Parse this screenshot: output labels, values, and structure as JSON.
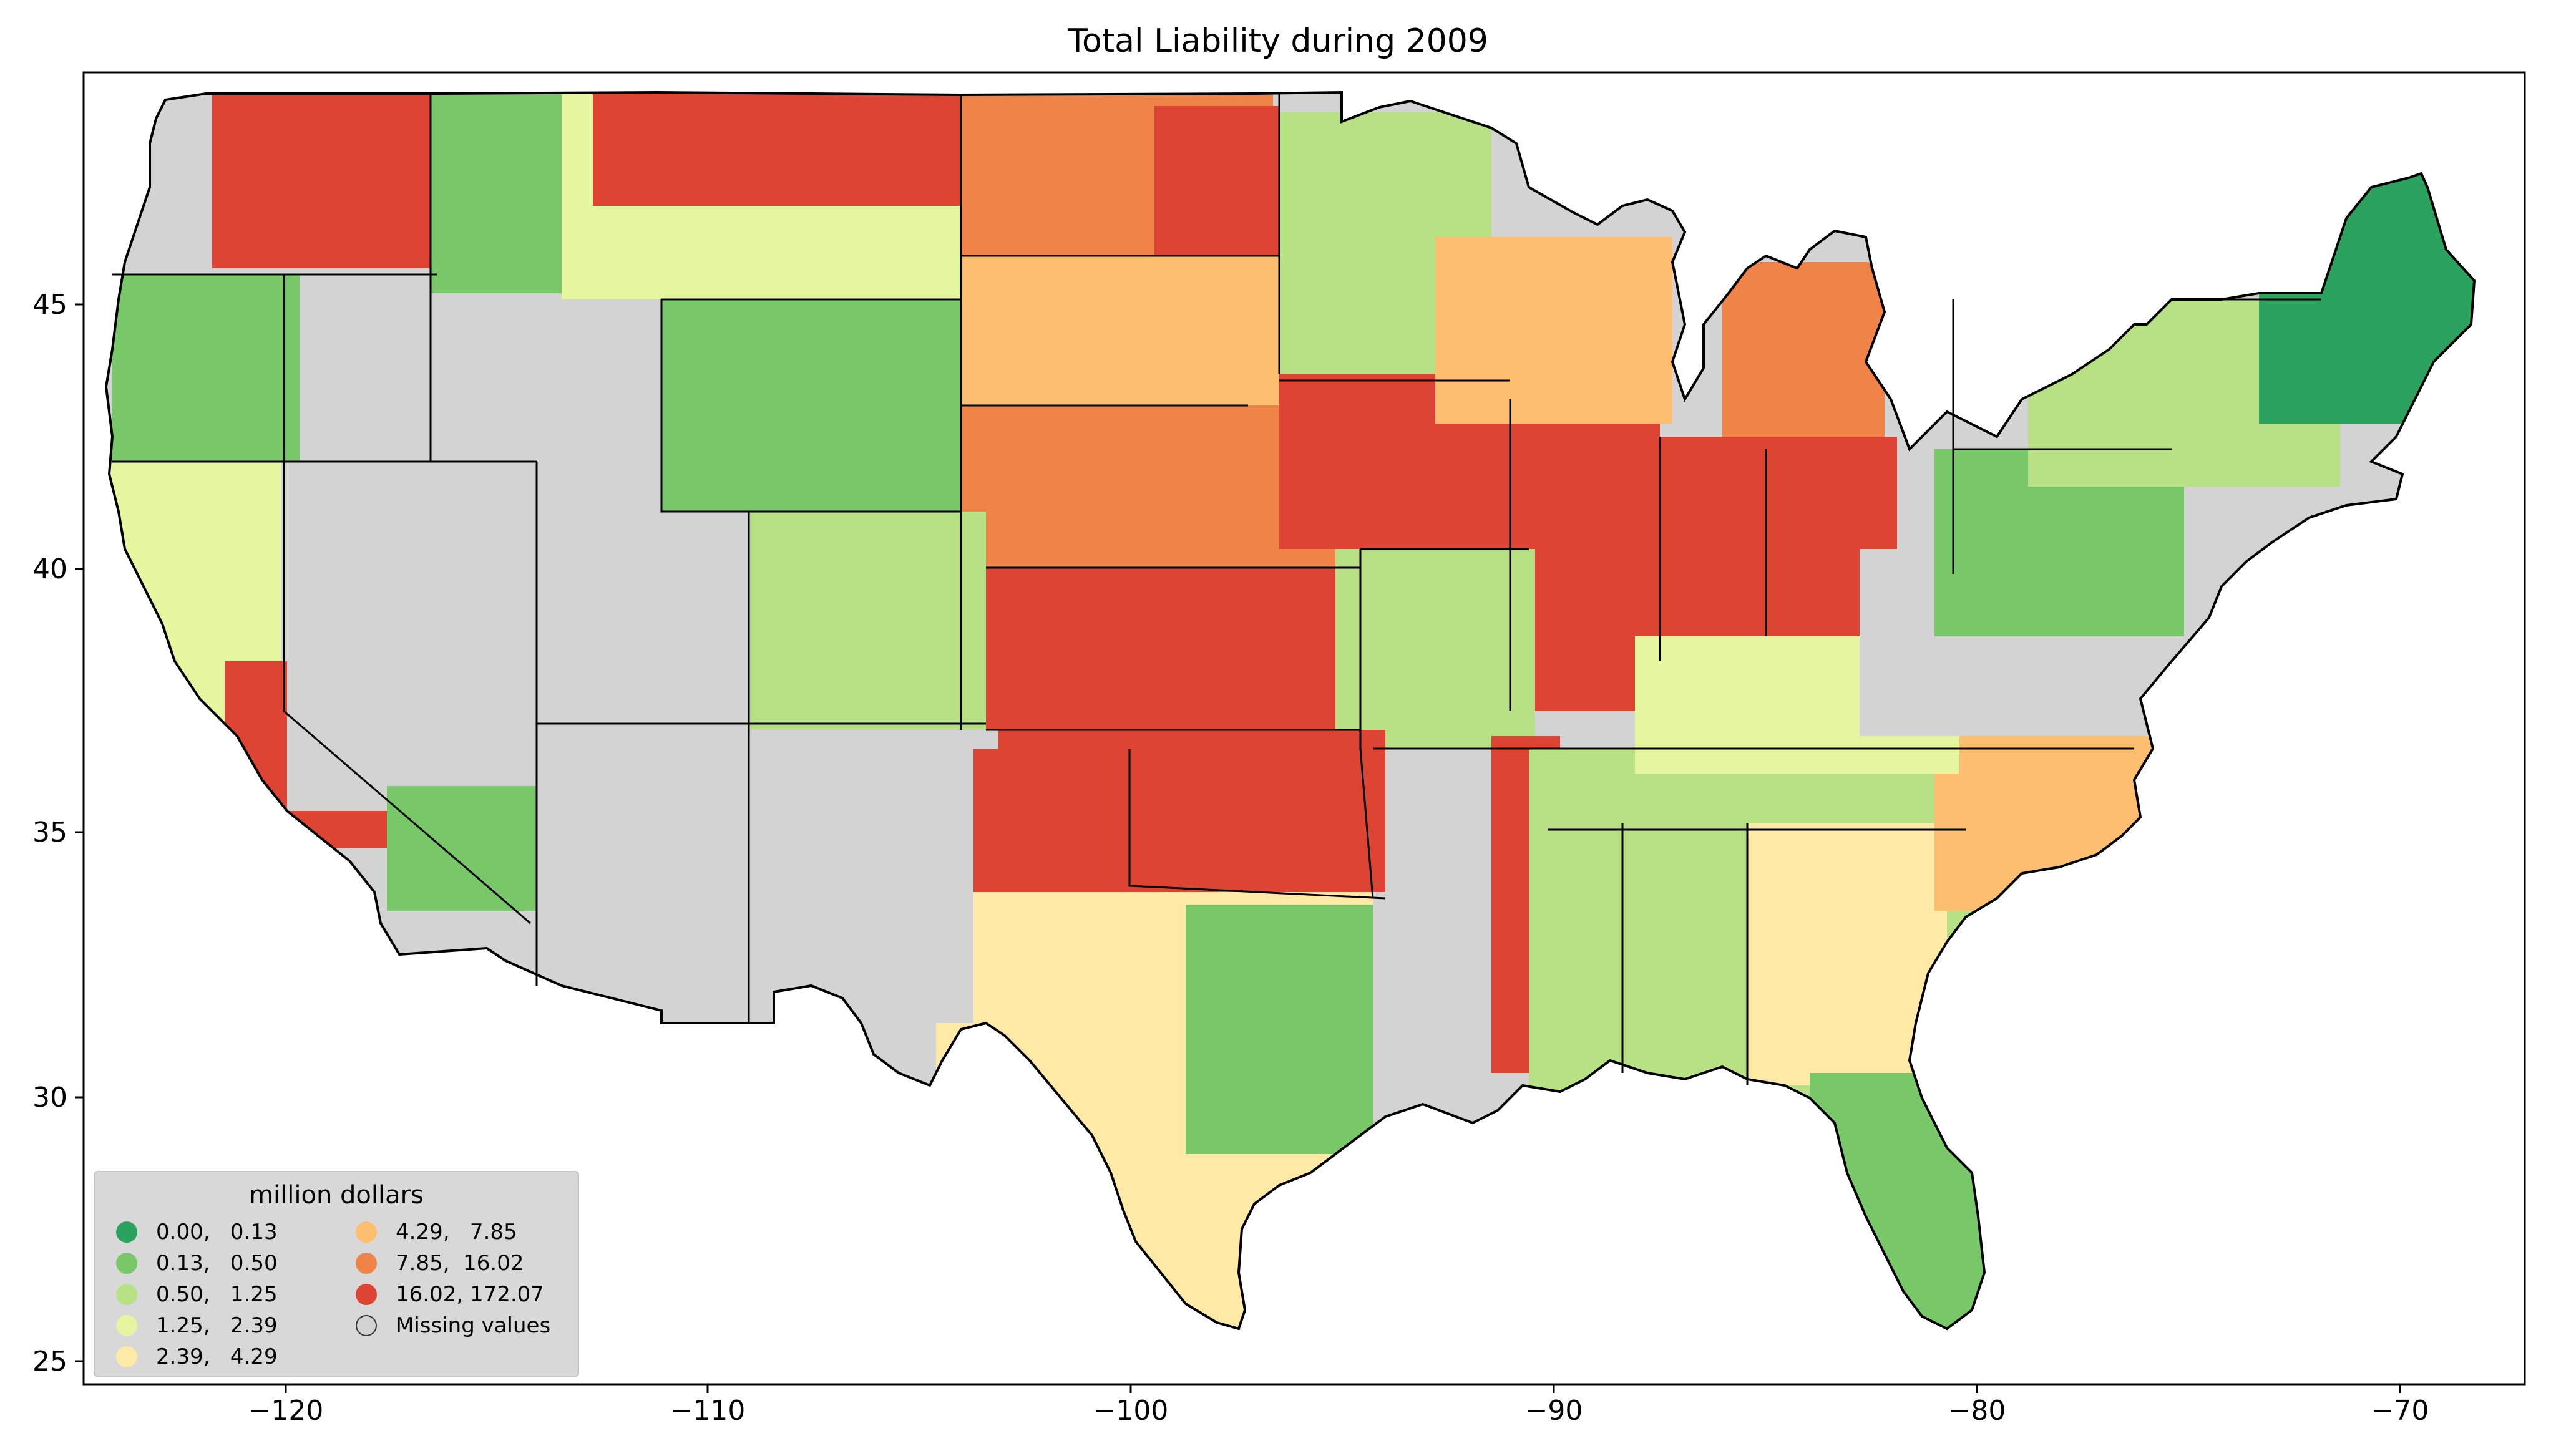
{
  "title": "Total Liability during 2009",
  "axes": {
    "x_ticks": [
      "−120",
      "−110",
      "−100",
      "−90",
      "−80",
      "−70"
    ],
    "y_ticks": [
      "45",
      "40",
      "35",
      "30",
      "25"
    ]
  },
  "legend": {
    "title": "million dollars",
    "items": [
      {
        "label": "0.00,   0.13",
        "color": "#2ca25f"
      },
      {
        "label": "0.13,   0.50",
        "color": "#78c86a"
      },
      {
        "label": "0.50,   1.25",
        "color": "#b8e186"
      },
      {
        "label": "1.25,   2.39",
        "color": "#e5f5a0"
      },
      {
        "label": "2.39,   4.29",
        "color": "#fee9a6"
      },
      {
        "label": "4.29,   7.85",
        "color": "#fdbf6f"
      },
      {
        "label": "7.85,  16.02",
        "color": "#f08448"
      },
      {
        "label": "16.02, 172.07",
        "color": "#dd4433"
      },
      {
        "label": "Missing values",
        "color": "#d3d3d3"
      }
    ]
  },
  "colors": {
    "missing": "#d3d3d3",
    "ocean": "#ffffff",
    "border": "#000000"
  }
}
